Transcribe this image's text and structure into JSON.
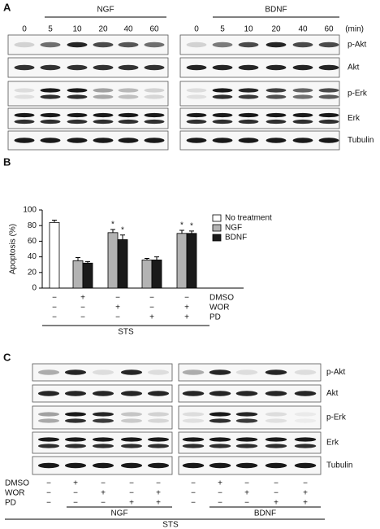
{
  "panel_a": {
    "label": "A",
    "groups": [
      {
        "name": "NGF",
        "times": [
          "0",
          "5",
          "10",
          "20",
          "40",
          "60"
        ]
      },
      {
        "name": "BDNF",
        "times": [
          "0",
          "5",
          "10",
          "20",
          "40",
          "60"
        ]
      }
    ],
    "unit": "(min)",
    "blots": [
      "p-Akt",
      "Akt",
      "p-Erk",
      "Erk",
      "Tubulin"
    ]
  },
  "chart_data": {
    "type": "bar",
    "label": "B",
    "ylabel": "Apoptosis (%)",
    "ylim": [
      0,
      100
    ],
    "yticks": [
      0,
      20,
      40,
      60,
      80,
      100
    ],
    "legend": "upper right",
    "series": [
      {
        "name": "No treatment",
        "color": "#ffffff",
        "values": [
          84,
          null,
          null,
          null,
          null
        ],
        "errors": [
          3,
          null,
          null,
          null,
          null
        ],
        "annotations": [
          null,
          null,
          null,
          null,
          null
        ]
      },
      {
        "name": "NGF",
        "color": "#b3b3b3",
        "values": [
          null,
          35,
          71,
          36,
          70
        ],
        "errors": [
          null,
          4,
          4,
          2,
          4
        ],
        "annotations": [
          null,
          null,
          "*",
          null,
          "*"
        ]
      },
      {
        "name": "BDNF",
        "color": "#1a1a1a",
        "values": [
          null,
          32,
          62,
          36,
          70
        ],
        "errors": [
          null,
          2,
          6,
          4,
          3
        ],
        "annotations": [
          null,
          null,
          "*",
          null,
          "*"
        ]
      }
    ],
    "treatments": [
      {
        "name": "DMSO",
        "signs": [
          "−",
          "+",
          "−",
          "−",
          "−"
        ]
      },
      {
        "name": "WOR",
        "signs": [
          "−",
          "−",
          "+",
          "−",
          "+"
        ]
      },
      {
        "name": "PD",
        "signs": [
          "−",
          "−",
          "−",
          "+",
          "+"
        ]
      }
    ],
    "stimulus": "STS"
  },
  "panel_c": {
    "label": "C",
    "blots": [
      "p-Akt",
      "Akt",
      "p-Erk",
      "Erk",
      "Tubulin"
    ],
    "treatments": [
      {
        "name": "DMSO",
        "signs": [
          "−",
          "+",
          "−",
          "−",
          "−",
          "−",
          "+",
          "−",
          "−",
          "−"
        ]
      },
      {
        "name": "WOR",
        "signs": [
          "−",
          "−",
          "+",
          "−",
          "+",
          "−",
          "−",
          "+",
          "−",
          "+"
        ]
      },
      {
        "name": "PD",
        "signs": [
          "−",
          "−",
          "−",
          "+",
          "+",
          "−",
          "−",
          "−",
          "+",
          "+"
        ]
      }
    ],
    "groups": [
      "NGF",
      "BDNF"
    ],
    "stimulus": "STS"
  }
}
